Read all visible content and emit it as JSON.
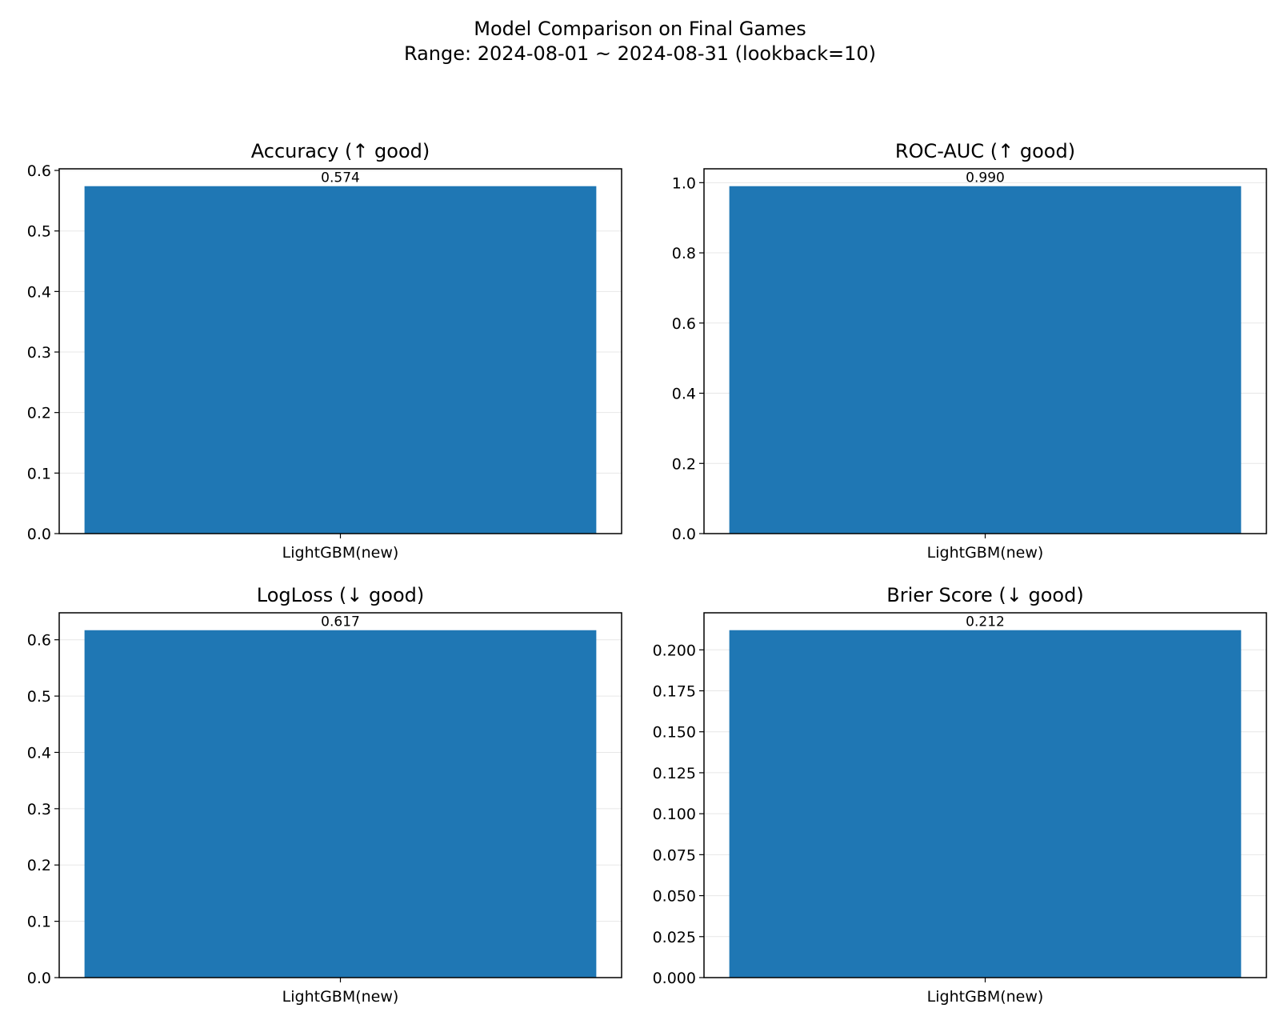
{
  "figure": {
    "title_line1": "Model Comparison on Final Games",
    "title_line2": "Range: 2024-08-01 ~ 2024-08-31 (lookback=10)"
  },
  "colors": {
    "bar": "#1f77b4"
  },
  "chart_data": [
    {
      "type": "bar",
      "title": "Accuracy (↑ good)",
      "categories": [
        "LightGBM(new)"
      ],
      "values": [
        0.574
      ],
      "value_labels": [
        "0.574"
      ],
      "ylim": [
        0,
        0.6027
      ],
      "yticks": [
        0.0,
        0.1,
        0.2,
        0.3,
        0.4,
        0.5,
        0.6
      ],
      "ytick_labels": [
        "0.0",
        "0.1",
        "0.2",
        "0.3",
        "0.4",
        "0.5",
        "0.6"
      ],
      "grid": "y"
    },
    {
      "type": "bar",
      "title": "ROC-AUC (↑ good)",
      "categories": [
        "LightGBM(new)"
      ],
      "values": [
        0.99
      ],
      "value_labels": [
        "0.990"
      ],
      "ylim": [
        0,
        1.0395
      ],
      "yticks": [
        0.0,
        0.2,
        0.4,
        0.6,
        0.8,
        1.0
      ],
      "ytick_labels": [
        "0.0",
        "0.2",
        "0.4",
        "0.6",
        "0.8",
        "1.0"
      ],
      "grid": "y"
    },
    {
      "type": "bar",
      "title": "LogLoss (↓ good)",
      "categories": [
        "LightGBM(new)"
      ],
      "values": [
        0.617
      ],
      "value_labels": [
        "0.617"
      ],
      "ylim": [
        0,
        0.6479
      ],
      "yticks": [
        0.0,
        0.1,
        0.2,
        0.3,
        0.4,
        0.5,
        0.6
      ],
      "ytick_labels": [
        "0.0",
        "0.1",
        "0.2",
        "0.3",
        "0.4",
        "0.5",
        "0.6"
      ],
      "grid": "y"
    },
    {
      "type": "bar",
      "title": "Brier Score (↓ good)",
      "categories": [
        "LightGBM(new)"
      ],
      "values": [
        0.212
      ],
      "value_labels": [
        "0.212"
      ],
      "ylim": [
        0,
        0.2226
      ],
      "yticks": [
        0.0,
        0.025,
        0.05,
        0.075,
        0.1,
        0.125,
        0.15,
        0.175,
        0.2
      ],
      "ytick_labels": [
        "0.000",
        "0.025",
        "0.050",
        "0.075",
        "0.100",
        "0.125",
        "0.150",
        "0.175",
        "0.200"
      ],
      "grid": "y"
    }
  ]
}
